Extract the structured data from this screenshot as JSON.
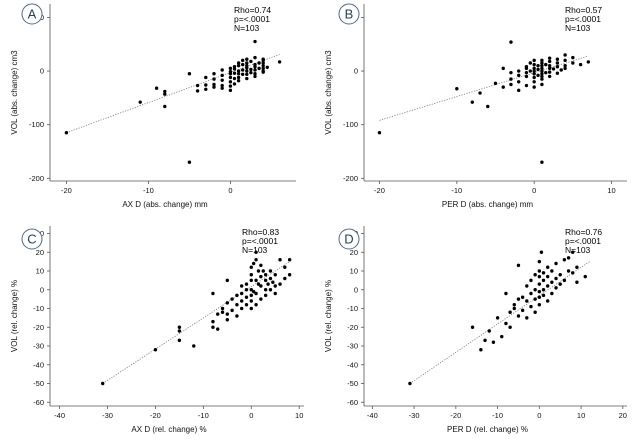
{
  "chart_data": [
    {
      "type": "scatter",
      "panel_label": "A",
      "xlabel": "AX D (abs. change) mm",
      "ylabel": "VOL (abs. change) cm3",
      "xlim": [
        -22,
        8
      ],
      "ylim": [
        -205,
        125
      ],
      "xticks": [
        -20,
        -10,
        0
      ],
      "yticks": [
        -200,
        -100,
        0,
        100
      ],
      "stats": [
        "Rho=0.74",
        "p=<.0001",
        "N=103"
      ],
      "fit_line": {
        "x": [
          -20,
          6
        ],
        "y": [
          -115,
          31
        ]
      },
      "points": [
        [
          -20,
          -115
        ],
        [
          -11,
          -58
        ],
        [
          -9,
          -32
        ],
        [
          -8,
          -38
        ],
        [
          -8,
          -43
        ],
        [
          -8,
          -66
        ],
        [
          -5,
          -5
        ],
        [
          -5,
          -170
        ],
        [
          -4,
          -27
        ],
        [
          -4,
          -37
        ],
        [
          -3,
          -12
        ],
        [
          -3,
          -26
        ],
        [
          -3,
          -34
        ],
        [
          -2,
          -5
        ],
        [
          -2,
          -15
        ],
        [
          -2,
          -25
        ],
        [
          -2,
          -30
        ],
        [
          -1,
          2
        ],
        [
          -1,
          -8
        ],
        [
          -1,
          -17
        ],
        [
          -1,
          -27
        ],
        [
          -1,
          -32
        ],
        [
          0,
          -1
        ],
        [
          0,
          5
        ],
        [
          0,
          -5
        ],
        [
          0,
          -12
        ],
        [
          0,
          -20
        ],
        [
          0,
          -28
        ],
        [
          0,
          -36
        ],
        [
          0.5,
          4
        ],
        [
          0.5,
          8
        ],
        [
          0.5,
          -4
        ],
        [
          0.5,
          -14
        ],
        [
          0.5,
          -24
        ],
        [
          1,
          0
        ],
        [
          1,
          -5
        ],
        [
          1,
          10
        ],
        [
          1,
          15
        ],
        [
          1,
          -12
        ],
        [
          1,
          -18
        ],
        [
          1.5,
          2
        ],
        [
          1.5,
          -6
        ],
        [
          1.5,
          12
        ],
        [
          1.5,
          20
        ],
        [
          2,
          0
        ],
        [
          2,
          6
        ],
        [
          2,
          10
        ],
        [
          2,
          15
        ],
        [
          2,
          22
        ],
        [
          2,
          -6
        ],
        [
          2,
          -14
        ],
        [
          2.5,
          3
        ],
        [
          2.5,
          18
        ],
        [
          2.5,
          -3
        ],
        [
          3,
          2
        ],
        [
          3,
          8
        ],
        [
          3,
          12
        ],
        [
          3,
          25
        ],
        [
          3,
          -5
        ],
        [
          3,
          -10
        ],
        [
          3,
          55
        ],
        [
          3.5,
          15
        ],
        [
          3.5,
          5
        ],
        [
          4,
          0
        ],
        [
          4,
          5
        ],
        [
          4,
          10
        ],
        [
          4,
          15
        ],
        [
          4,
          20
        ],
        [
          4,
          22
        ],
        [
          4,
          -2
        ],
        [
          4.5,
          7
        ],
        [
          6,
          17
        ]
      ]
    },
    {
      "type": "scatter",
      "panel_label": "B",
      "xlabel": "PER D (abs. change) mm",
      "ylabel": "VOL (abs. change) cm3",
      "xlim": [
        -22,
        12
      ],
      "ylim": [
        -205,
        125
      ],
      "xticks": [
        -20,
        -10,
        0,
        10
      ],
      "yticks": [
        -200,
        -100,
        0,
        100
      ],
      "stats": [
        "Rho=0.57",
        "p=<.0001",
        "N=103"
      ],
      "fit_line": {
        "x": [
          -20,
          7
        ],
        "y": [
          -92,
          28
        ]
      },
      "points": [
        [
          -20,
          -115
        ],
        [
          -10,
          -33
        ],
        [
          -8,
          -58
        ],
        [
          -7,
          -41
        ],
        [
          -6,
          -66
        ],
        [
          -5,
          -23
        ],
        [
          -4,
          -30
        ],
        [
          -4,
          5
        ],
        [
          -3,
          -15
        ],
        [
          -3,
          -25
        ],
        [
          -3,
          54
        ],
        [
          -3,
          -3
        ],
        [
          -2,
          -8
        ],
        [
          -2,
          0
        ],
        [
          -2,
          -20
        ],
        [
          -2,
          -36
        ],
        [
          -1,
          5
        ],
        [
          -1,
          -3
        ],
        [
          -1,
          -10
        ],
        [
          -1,
          -27
        ],
        [
          -1,
          8
        ],
        [
          -0.5,
          0
        ],
        [
          -0.5,
          15
        ],
        [
          0,
          5
        ],
        [
          0,
          -5
        ],
        [
          0,
          12
        ],
        [
          0,
          -12
        ],
        [
          0,
          20
        ],
        [
          0,
          -20
        ],
        [
          0,
          0
        ],
        [
          0,
          -30
        ],
        [
          0.5,
          10
        ],
        [
          0.5,
          -8
        ],
        [
          0.5,
          3
        ],
        [
          1,
          0
        ],
        [
          1,
          5
        ],
        [
          1,
          10
        ],
        [
          1,
          15
        ],
        [
          1,
          20
        ],
        [
          1,
          -5
        ],
        [
          1,
          -10
        ],
        [
          1,
          -15
        ],
        [
          1,
          -25
        ],
        [
          1,
          -170
        ],
        [
          1.5,
          12
        ],
        [
          1.5,
          -3
        ],
        [
          2,
          5
        ],
        [
          2,
          10
        ],
        [
          2,
          -2
        ],
        [
          2,
          18
        ],
        [
          2,
          24
        ],
        [
          2,
          -10
        ],
        [
          2.5,
          4
        ],
        [
          3,
          8
        ],
        [
          3,
          15
        ],
        [
          3,
          -4
        ],
        [
          3,
          22
        ],
        [
          3.5,
          2
        ],
        [
          4,
          10
        ],
        [
          4,
          20
        ],
        [
          4,
          30
        ],
        [
          4,
          5
        ],
        [
          5,
          15
        ],
        [
          5,
          25
        ],
        [
          6,
          12
        ],
        [
          7,
          17
        ]
      ]
    },
    {
      "type": "scatter",
      "panel_label": "C",
      "xlabel": "AX D (rel. change) %",
      "ylabel": "VOL (rel. change) %",
      "xlim": [
        -42,
        11
      ],
      "ylim": [
        -62,
        34
      ],
      "xticks": [
        -40,
        -30,
        -20,
        -10,
        0,
        10
      ],
      "yticks": [
        -60,
        -50,
        -40,
        -30,
        -20,
        -10,
        0,
        10,
        20,
        30
      ],
      "stats": [
        "Rho=0.83",
        "p=<.0001",
        "N=103"
      ],
      "fit_line": {
        "x": [
          -31,
          8
        ],
        "y": [
          -50,
          15
        ]
      },
      "points": [
        [
          -31,
          -50
        ],
        [
          -20,
          -32
        ],
        [
          -15,
          -20
        ],
        [
          -15,
          -22
        ],
        [
          -15,
          -27
        ],
        [
          -12,
          -30
        ],
        [
          -8,
          -2
        ],
        [
          -8,
          -17
        ],
        [
          -8,
          -20
        ],
        [
          -7,
          -13
        ],
        [
          -7,
          -21
        ],
        [
          -6,
          -10
        ],
        [
          -6,
          -12
        ],
        [
          -5,
          5
        ],
        [
          -5,
          -7
        ],
        [
          -5,
          -13
        ],
        [
          -5,
          -16
        ],
        [
          -4,
          -5
        ],
        [
          -4,
          -11
        ],
        [
          -3,
          -3
        ],
        [
          -3,
          -8
        ],
        [
          -3,
          -14
        ],
        [
          -2,
          -2
        ],
        [
          -2,
          -6
        ],
        [
          -2,
          -10
        ],
        [
          -2,
          2
        ],
        [
          -1,
          0
        ],
        [
          -1,
          -4
        ],
        [
          -1,
          -8
        ],
        [
          -1,
          3
        ],
        [
          0,
          8
        ],
        [
          0,
          5
        ],
        [
          0,
          0
        ],
        [
          0,
          -3
        ],
        [
          0,
          -6
        ],
        [
          0,
          -10
        ],
        [
          0,
          12
        ],
        [
          0.5,
          14
        ],
        [
          0.5,
          -1
        ],
        [
          1,
          20
        ],
        [
          1,
          16
        ],
        [
          1,
          5
        ],
        [
          1,
          -2
        ],
        [
          1,
          -8
        ],
        [
          1.5,
          10
        ],
        [
          1.5,
          3
        ],
        [
          2,
          7
        ],
        [
          2,
          2
        ],
        [
          2,
          -5
        ],
        [
          2,
          13
        ],
        [
          2.5,
          10
        ],
        [
          3,
          5
        ],
        [
          3,
          0
        ],
        [
          3,
          -3
        ],
        [
          3,
          8
        ],
        [
          3.5,
          3
        ],
        [
          4,
          6
        ],
        [
          4,
          0
        ],
        [
          4,
          10
        ],
        [
          4.5,
          4
        ],
        [
          5,
          2
        ],
        [
          5,
          8
        ],
        [
          5,
          -2
        ],
        [
          6,
          16
        ],
        [
          6,
          3
        ],
        [
          7,
          12
        ],
        [
          7,
          6
        ],
        [
          8,
          16
        ],
        [
          8,
          8
        ]
      ]
    },
    {
      "type": "scatter",
      "panel_label": "D",
      "xlabel": "PER D (rel. change) %",
      "ylabel": "VOL (rel. change) %",
      "xlim": [
        -42,
        21
      ],
      "ylim": [
        -62,
        34
      ],
      "xticks": [
        -40,
        -30,
        -20,
        -10,
        0,
        10,
        20
      ],
      "yticks": [
        -60,
        -50,
        -40,
        -30,
        -20,
        -10,
        0,
        10,
        20,
        30
      ],
      "stats": [
        "Rho=0.76",
        "p=<.0001",
        "N=103"
      ],
      "fit_line": {
        "x": [
          -31,
          12
        ],
        "y": [
          -50,
          15
        ]
      },
      "points": [
        [
          -31,
          -50
        ],
        [
          -16,
          -20
        ],
        [
          -14,
          -32
        ],
        [
          -13,
          -27
        ],
        [
          -12,
          -22
        ],
        [
          -11,
          -28
        ],
        [
          -10,
          -15
        ],
        [
          -9,
          -25
        ],
        [
          -8,
          -2
        ],
        [
          -8,
          -18
        ],
        [
          -7,
          -12
        ],
        [
          -7,
          -20
        ],
        [
          -6,
          -10
        ],
        [
          -6,
          -8
        ],
        [
          -5,
          13
        ],
        [
          -5,
          -5
        ],
        [
          -5,
          -14
        ],
        [
          -4,
          -4
        ],
        [
          -4,
          -11
        ],
        [
          -3,
          2
        ],
        [
          -3,
          -6
        ],
        [
          -3,
          -15
        ],
        [
          -2,
          5
        ],
        [
          -2,
          -2
        ],
        [
          -2,
          -9
        ],
        [
          -1,
          0
        ],
        [
          -1,
          -5
        ],
        [
          -1,
          8
        ],
        [
          -1,
          -12
        ],
        [
          0,
          3
        ],
        [
          0,
          7
        ],
        [
          0,
          -1
        ],
        [
          0,
          -4
        ],
        [
          0,
          -8
        ],
        [
          0,
          10
        ],
        [
          0,
          15
        ],
        [
          0.5,
          20
        ],
        [
          1,
          5
        ],
        [
          1,
          0
        ],
        [
          1,
          -3
        ],
        [
          1,
          9
        ],
        [
          2,
          7
        ],
        [
          2,
          2
        ],
        [
          2,
          -6
        ],
        [
          2,
          12
        ],
        [
          3,
          4
        ],
        [
          3,
          10
        ],
        [
          3,
          -2
        ],
        [
          4,
          6
        ],
        [
          4,
          1
        ],
        [
          4,
          14
        ],
        [
          5,
          8
        ],
        [
          5,
          3
        ],
        [
          6,
          16
        ],
        [
          6,
          5
        ],
        [
          7,
          10
        ],
        [
          7,
          17
        ],
        [
          8,
          20
        ],
        [
          8,
          9
        ],
        [
          9,
          4
        ],
        [
          9,
          12
        ],
        [
          11,
          7
        ]
      ]
    }
  ]
}
